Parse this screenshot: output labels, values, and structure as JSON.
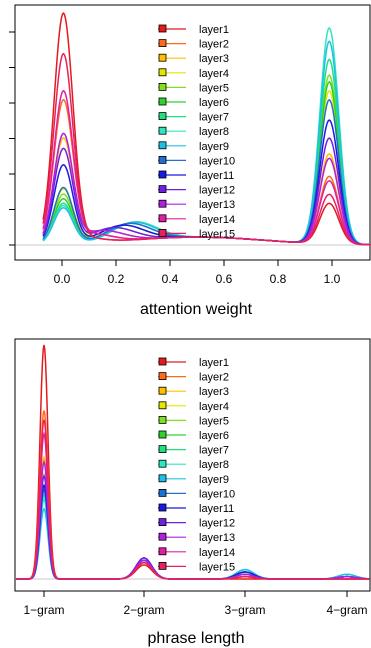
{
  "layer_colors": [
    "#e41a1c",
    "#ff6a1a",
    "#ffc000",
    "#e6e600",
    "#80e020",
    "#30d030",
    "#20e080",
    "#30e6c0",
    "#20c0e6",
    "#2070d0",
    "#1a1ae0",
    "#7020e0",
    "#b020e0",
    "#e020a0",
    "#e8205c"
  ],
  "chart_data": [
    {
      "type": "line",
      "title": "",
      "xlabel": "attention weight",
      "ylabel": "",
      "xlim": [
        -0.1,
        1.1
      ],
      "ylim": [
        0,
        1
      ],
      "x_ticks": [
        "0.0",
        "0.2",
        "0.4",
        "0.6",
        "0.8",
        "1.0"
      ],
      "x_tick_values": [
        0,
        0.2,
        0.4,
        0.6,
        0.8,
        1.0
      ],
      "legend_position": "top-center",
      "legend": [
        "layer1",
        "layer2",
        "layer3",
        "layer4",
        "layer5",
        "layer6",
        "layer7",
        "layer8",
        "layer9",
        "layer10",
        "layer11",
        "layer12",
        "layer13",
        "layer14",
        "layer15"
      ],
      "series": [
        {
          "name": "layer1",
          "left_peak": 1.0,
          "right_peak": 0.18
        },
        {
          "name": "layer2",
          "left_peak": 0.62,
          "right_peak": 0.3
        },
        {
          "name": "layer3",
          "left_peak": 0.46,
          "right_peak": 0.4
        },
        {
          "name": "layer4",
          "left_peak": 0.24,
          "right_peak": 0.68
        },
        {
          "name": "layer5",
          "left_peak": 0.22,
          "right_peak": 0.75
        },
        {
          "name": "layer6",
          "left_peak": 0.2,
          "right_peak": 0.72
        },
        {
          "name": "layer7",
          "left_peak": 0.18,
          "right_peak": 0.82
        },
        {
          "name": "layer8",
          "left_peak": 0.17,
          "right_peak": 0.96
        },
        {
          "name": "layer9",
          "left_peak": 0.16,
          "right_peak": 0.9
        },
        {
          "name": "layer10",
          "left_peak": 0.25,
          "right_peak": 0.64
        },
        {
          "name": "layer11",
          "left_peak": 0.35,
          "right_peak": 0.55
        },
        {
          "name": "layer12",
          "left_peak": 0.42,
          "right_peak": 0.47
        },
        {
          "name": "layer13",
          "left_peak": 0.48,
          "right_peak": 0.38
        },
        {
          "name": "layer14",
          "left_peak": 0.66,
          "right_peak": 0.28
        },
        {
          "name": "layer15",
          "left_peak": 0.82,
          "right_peak": 0.22
        }
      ]
    },
    {
      "type": "line",
      "title": "",
      "xlabel": "phrase length",
      "ylabel": "",
      "categories": [
        "1−gram",
        "2−gram",
        "3−gram",
        "4−gram"
      ],
      "ylim": [
        0,
        1
      ],
      "legend_position": "top-center",
      "legend": [
        "layer1",
        "layer2",
        "layer3",
        "layer4",
        "layer5",
        "layer6",
        "layer7",
        "layer8",
        "layer9",
        "layer10",
        "layer11",
        "layer12",
        "layer13",
        "layer14",
        "layer15"
      ],
      "series": [
        {
          "name": "layer1",
          "values": [
            1.0,
            0.06,
            0.0,
            0.0
          ]
        },
        {
          "name": "layer2",
          "values": [
            0.72,
            0.07,
            0.01,
            0.0
          ]
        },
        {
          "name": "layer3",
          "values": [
            0.52,
            0.08,
            0.02,
            0.01
          ]
        },
        {
          "name": "layer4",
          "values": [
            0.45,
            0.08,
            0.02,
            0.01
          ]
        },
        {
          "name": "layer5",
          "values": [
            0.4,
            0.08,
            0.03,
            0.01
          ]
        },
        {
          "name": "layer6",
          "values": [
            0.38,
            0.08,
            0.03,
            0.01
          ]
        },
        {
          "name": "layer7",
          "values": [
            0.36,
            0.08,
            0.03,
            0.01
          ]
        },
        {
          "name": "layer8",
          "values": [
            0.34,
            0.08,
            0.04,
            0.02
          ]
        },
        {
          "name": "layer9",
          "values": [
            0.3,
            0.08,
            0.04,
            0.02
          ]
        },
        {
          "name": "layer10",
          "values": [
            0.38,
            0.08,
            0.03,
            0.01
          ]
        },
        {
          "name": "layer11",
          "values": [
            0.4,
            0.09,
            0.03,
            0.01
          ]
        },
        {
          "name": "layer12",
          "values": [
            0.44,
            0.09,
            0.02,
            0.01
          ]
        },
        {
          "name": "layer13",
          "values": [
            0.5,
            0.08,
            0.02,
            0.01
          ]
        },
        {
          "name": "layer14",
          "values": [
            0.62,
            0.07,
            0.01,
            0.0
          ]
        },
        {
          "name": "layer15",
          "values": [
            0.68,
            0.07,
            0.01,
            0.0
          ]
        }
      ]
    }
  ]
}
